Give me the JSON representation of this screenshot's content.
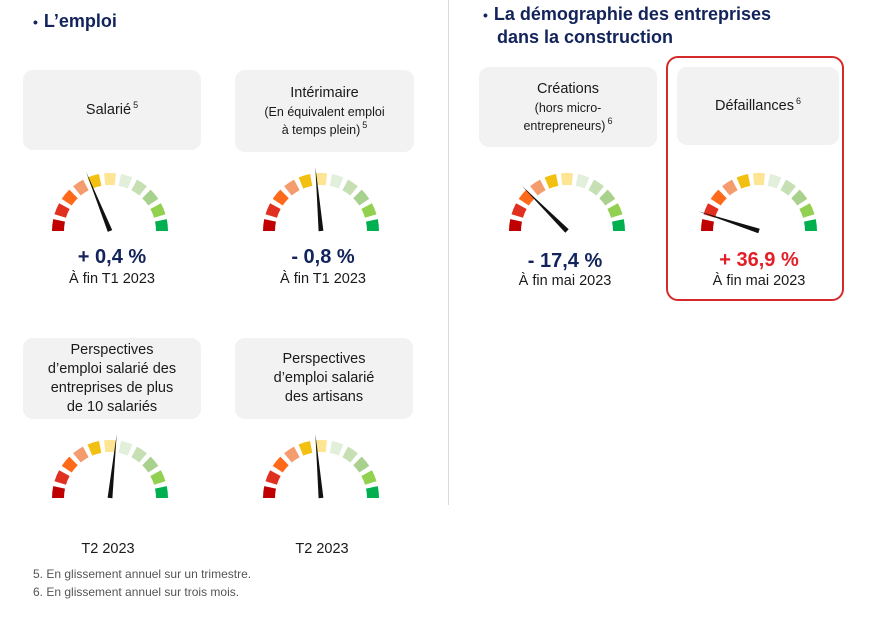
{
  "left_section": {
    "bullet": "•",
    "title": "L’emploi"
  },
  "right_section": {
    "bullet": "•",
    "title_line1": "La démographie des entreprises",
    "title_line2": "dans la construction"
  },
  "cards": {
    "salarie": {
      "title": "Salarié",
      "note": "5"
    },
    "interimaire": {
      "title": "Intérimaire",
      "sub1": "(En équivalent emploi",
      "sub2": "à temps plein)",
      "note": "5"
    },
    "creations": {
      "title": "Créations",
      "sub1": "(hors micro-",
      "sub2": "entrepreneurs)",
      "note": "6"
    },
    "defaillances": {
      "title": "Défaillances",
      "note": "6"
    },
    "persp_entreprises": {
      "line1": "Perspectives",
      "line2": "d’emploi salarié des",
      "line3": "entreprises de plus",
      "line4": "de 10 salariés"
    },
    "persp_artisans": {
      "line1": "Perspectives",
      "line2": "d’emploi salarié",
      "line3": "des artisans"
    }
  },
  "gauges": {
    "salarie": {
      "value": "+ 0,4 %",
      "period": "À fin T1 2023",
      "needle_angle": -22
    },
    "interimaire": {
      "value": "- 0,8 %",
      "period": "À fin T1 2023",
      "needle_angle": -5
    },
    "creations": {
      "value": "- 17,4 %",
      "period": "À fin mai 2023",
      "needle_angle": -45
    },
    "defaillances": {
      "value": "+ 36,9 %",
      "period": "À fin mai 2023",
      "needle_angle": -72
    },
    "persp_entreprises": {
      "period": "T2 2023",
      "needle_angle": 6
    },
    "persp_artisans": {
      "period": "T2 2023",
      "needle_angle": -5
    }
  },
  "colors": {
    "segments": [
      "#c00000",
      "#e03020",
      "#ff6a1a",
      "#f59c6e",
      "#f2c010",
      "#fde593",
      "#e2efda",
      "#c6e0b4",
      "#a9d18e",
      "#92d050",
      "#00b050"
    ],
    "accent_red": "#e41e26",
    "navy": "#13235b"
  },
  "footnotes": [
    "5. En glissement annuel sur un trimestre.",
    "6. En glissement annuel sur trois mois."
  ]
}
